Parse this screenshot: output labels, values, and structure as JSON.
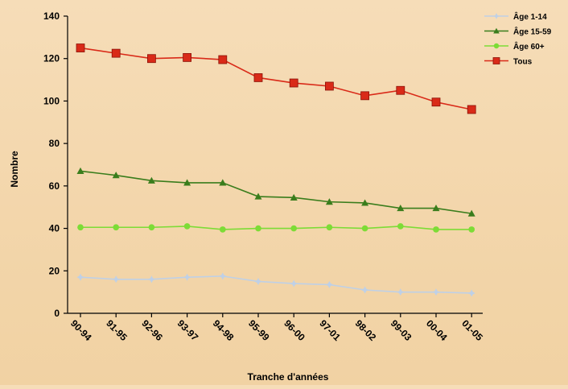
{
  "chart_data": {
    "type": "line",
    "title": "",
    "xlabel": "Tranche d'années",
    "ylabel": "Nombre",
    "ylim": [
      0,
      140
    ],
    "yticks": [
      0,
      20,
      40,
      60,
      80,
      100,
      120,
      140
    ],
    "grid": false,
    "legend_position": "top-right",
    "categories": [
      "90-94",
      "91-95",
      "92-96",
      "93-97",
      "94-98",
      "95-99",
      "96-00",
      "97-01",
      "98-02",
      "99-03",
      "00-04",
      "01-05"
    ],
    "series": [
      {
        "name": "Âge 1-14",
        "color": "#bfd0e6",
        "marker": "star",
        "values": [
          17,
          16,
          16,
          17,
          17.5,
          15,
          14,
          13.5,
          11,
          10,
          10,
          9.5
        ]
      },
      {
        "name": "Âge 15-59",
        "color": "#3a7d1c",
        "marker": "triangle",
        "values": [
          67,
          65,
          62.5,
          61.5,
          61.5,
          55,
          54.5,
          52.5,
          52,
          49.5,
          49.5,
          47
        ]
      },
      {
        "name": "Âge 60+",
        "color": "#7ddc36",
        "marker": "circle",
        "values": [
          40.5,
          40.5,
          40.5,
          41,
          39.5,
          40,
          40,
          40.5,
          40,
          41,
          39.5,
          39.5
        ]
      },
      {
        "name": "Tous",
        "color": "#d92a18",
        "marker": "square",
        "values": [
          125,
          122.5,
          120,
          120.5,
          119.5,
          111,
          108.5,
          107,
          102.5,
          105,
          99.5,
          96
        ]
      }
    ]
  }
}
